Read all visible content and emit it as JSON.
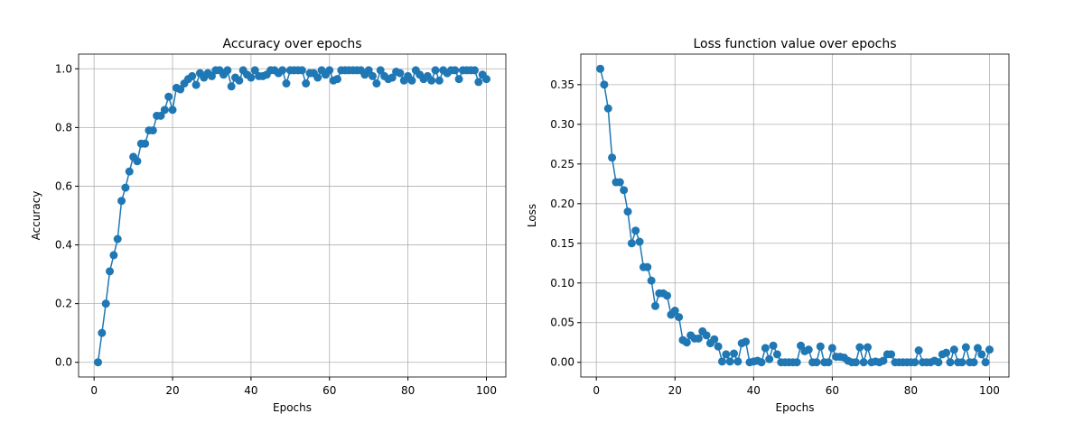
{
  "chart_data": [
    {
      "type": "line",
      "title": "Accuracy over epochs",
      "x_label": "Epochs",
      "y_label": "Accuracy",
      "x": [
        1,
        2,
        3,
        4,
        5,
        6,
        7,
        8,
        9,
        10,
        11,
        12,
        13,
        14,
        15,
        16,
        17,
        18,
        19,
        20,
        21,
        22,
        23,
        24,
        25,
        26,
        27,
        28,
        29,
        30,
        31,
        32,
        33,
        34,
        35,
        36,
        37,
        38,
        39,
        40,
        41,
        42,
        43,
        44,
        45,
        46,
        47,
        48,
        49,
        50,
        51,
        52,
        53,
        54,
        55,
        56,
        57,
        58,
        59,
        60,
        61,
        62,
        63,
        64,
        65,
        66,
        67,
        68,
        69,
        70,
        71,
        72,
        73,
        74,
        75,
        76,
        77,
        78,
        79,
        80,
        81,
        82,
        83,
        84,
        85,
        86,
        87,
        88,
        89,
        90,
        91,
        92,
        93,
        94,
        95,
        96,
        97,
        98,
        99,
        100
      ],
      "series": [
        {
          "color": "#1f77b4",
          "values": [
            0,
            0.1,
            0.2,
            0.31,
            0.365,
            0.42,
            0.55,
            0.595,
            0.65,
            0.7,
            0.685,
            0.745,
            0.745,
            0.79,
            0.79,
            0.84,
            0.84,
            0.86,
            0.905,
            0.86,
            0.935,
            0.93,
            0.95,
            0.965,
            0.975,
            0.945,
            0.985,
            0.97,
            0.985,
            0.975,
            0.995,
            0.995,
            0.98,
            0.995,
            0.94,
            0.97,
            0.96,
            0.995,
            0.98,
            0.97,
            0.995,
            0.975,
            0.975,
            0.98,
            0.995,
            0.995,
            0.985,
            0.995,
            0.95,
            0.995,
            0.995,
            0.995,
            0.995,
            0.95,
            0.985,
            0.985,
            0.97,
            0.995,
            0.98,
            0.995,
            0.96,
            0.965,
            0.995,
            0.995,
            0.995,
            0.995,
            0.995,
            0.995,
            0.98,
            0.995,
            0.975,
            0.95,
            0.995,
            0.975,
            0.965,
            0.97,
            0.99,
            0.985,
            0.96,
            0.975,
            0.96,
            0.995,
            0.98,
            0.965,
            0.975,
            0.96,
            0.995,
            0.96,
            0.995,
            0.985,
            0.995,
            0.995,
            0.965,
            0.995,
            0.995,
            0.995,
            0.995,
            0.955,
            0.98,
            0.965
          ]
        }
      ],
      "xlim": [
        -3.95,
        104.95
      ],
      "xticks": [
        0,
        20,
        40,
        60,
        80,
        100
      ],
      "ylim": [
        -0.05,
        1.05
      ],
      "yticks": [
        {
          "value": 0,
          "label": "0.0"
        },
        0.2,
        0.4,
        0.6,
        0.8,
        {
          "value": 1,
          "label": "1.0"
        }
      ],
      "grid": true
    },
    {
      "type": "line",
      "title": "Loss function value over epochs",
      "x_label": "Epochs",
      "y_label": "Loss",
      "x": [
        1,
        2,
        3,
        4,
        5,
        6,
        7,
        8,
        9,
        10,
        11,
        12,
        13,
        14,
        15,
        16,
        17,
        18,
        19,
        20,
        21,
        22,
        23,
        24,
        25,
        26,
        27,
        28,
        29,
        30,
        31,
        32,
        33,
        34,
        35,
        36,
        37,
        38,
        39,
        40,
        41,
        42,
        43,
        44,
        45,
        46,
        47,
        48,
        49,
        50,
        51,
        52,
        53,
        54,
        55,
        56,
        57,
        58,
        59,
        60,
        61,
        62,
        63,
        64,
        65,
        66,
        67,
        68,
        69,
        70,
        71,
        72,
        73,
        74,
        75,
        76,
        77,
        78,
        79,
        80,
        81,
        82,
        83,
        84,
        85,
        86,
        87,
        88,
        89,
        90,
        91,
        92,
        93,
        94,
        95,
        96,
        97,
        98,
        99,
        100
      ],
      "series": [
        {
          "color": "#1f77b4",
          "values": [
            0.37,
            0.35,
            0.32,
            0.258,
            0.227,
            0.227,
            0.217,
            0.19,
            0.15,
            0.166,
            0.152,
            0.12,
            0.12,
            0.103,
            0.071,
            0.087,
            0.087,
            0.084,
            0.06,
            0.065,
            0.057,
            0.028,
            0.025,
            0.034,
            0.03,
            0.03,
            0.039,
            0.034,
            0.024,
            0.029,
            0.02,
            0.001,
            0.01,
            0.001,
            0.011,
            0.001,
            0.024,
            0.026,
            0,
            0.001,
            0.002,
            0,
            0.018,
            0.004,
            0.021,
            0.01,
            0,
            0,
            0,
            0,
            0,
            0.021,
            0.014,
            0.016,
            0,
            0,
            0.02,
            0,
            0,
            0.018,
            0.007,
            0.007,
            0.006,
            0.002,
            0,
            0,
            0.019,
            0,
            0.019,
            0,
            0.001,
            0,
            0.002,
            0.01,
            0.01,
            0,
            0,
            0,
            0,
            0,
            0,
            0.015,
            0,
            0,
            0,
            0.002,
            0,
            0.01,
            0.012,
            0,
            0.016,
            0,
            0,
            0.019,
            0,
            0,
            0.018,
            0.01,
            0,
            0.016
          ]
        }
      ],
      "xlim": [
        -3.95,
        104.95
      ],
      "xticks": [
        0,
        20,
        40,
        60,
        80,
        100
      ],
      "ylim": [
        -0.0185,
        0.3885
      ],
      "yticks": [
        {
          "value": 0,
          "label": "0.00"
        },
        0.05,
        {
          "value": 0.1,
          "label": "0.10"
        },
        0.15,
        {
          "value": 0.2,
          "label": "0.20"
        },
        0.25,
        {
          "value": 0.3,
          "label": "0.30"
        },
        0.35
      ],
      "grid": true
    }
  ]
}
